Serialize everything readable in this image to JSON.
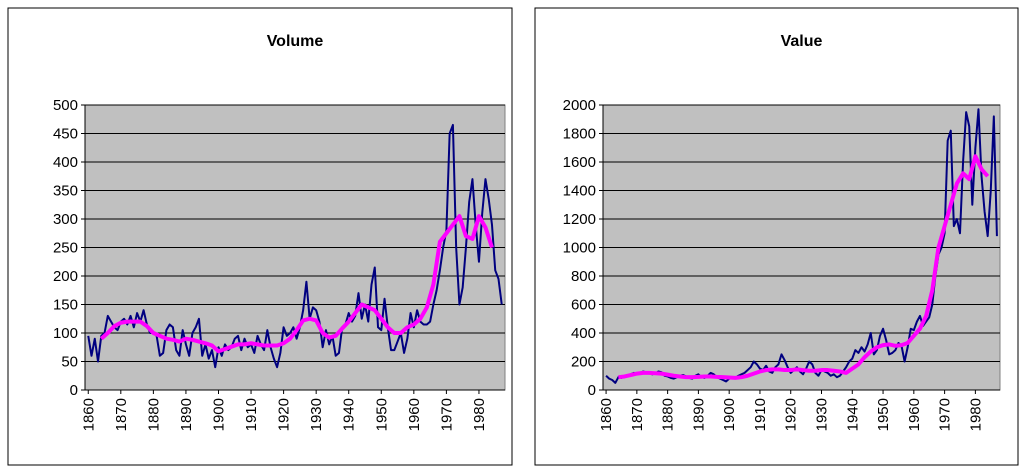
{
  "chart_data": [
    {
      "type": "line",
      "title": "Volume",
      "ylim": [
        0,
        500
      ],
      "yticks": [
        0,
        50,
        100,
        150,
        200,
        250,
        300,
        350,
        400,
        450,
        500
      ],
      "xlim": [
        1859,
        1988
      ],
      "xticks": [
        1860,
        1870,
        1880,
        1890,
        1900,
        1910,
        1920,
        1930,
        1940,
        1950,
        1960,
        1970,
        1980
      ],
      "grid": true,
      "x": [
        1860,
        1861,
        1862,
        1863,
        1864,
        1865,
        1866,
        1867,
        1868,
        1869,
        1870,
        1871,
        1872,
        1873,
        1874,
        1875,
        1876,
        1877,
        1878,
        1879,
        1880,
        1881,
        1882,
        1883,
        1884,
        1885,
        1886,
        1887,
        1888,
        1889,
        1890,
        1891,
        1892,
        1893,
        1894,
        1895,
        1896,
        1897,
        1898,
        1899,
        1900,
        1901,
        1902,
        1903,
        1904,
        1905,
        1906,
        1907,
        1908,
        1909,
        1910,
        1911,
        1912,
        1913,
        1914,
        1915,
        1916,
        1917,
        1918,
        1919,
        1920,
        1921,
        1922,
        1923,
        1924,
        1925,
        1926,
        1927,
        1928,
        1929,
        1930,
        1931,
        1932,
        1933,
        1934,
        1935,
        1936,
        1937,
        1938,
        1939,
        1940,
        1941,
        1942,
        1943,
        1944,
        1945,
        1946,
        1947,
        1948,
        1949,
        1950,
        1951,
        1952,
        1953,
        1954,
        1955,
        1956,
        1957,
        1958,
        1959,
        1960,
        1961,
        1962,
        1963,
        1964,
        1965,
        1966,
        1967,
        1968,
        1969,
        1970,
        1971,
        1972,
        1973,
        1974,
        1975,
        1976,
        1977,
        1978,
        1979,
        1980,
        1981,
        1982,
        1983,
        1984,
        1985,
        1986,
        1987
      ],
      "series": [
        {
          "color": "#000080",
          "values": [
            95,
            60,
            90,
            50,
            95,
            100,
            130,
            120,
            110,
            105,
            120,
            125,
            115,
            130,
            110,
            135,
            120,
            140,
            115,
            100,
            100,
            95,
            60,
            65,
            105,
            115,
            110,
            70,
            60,
            105,
            80,
            60,
            100,
            110,
            125,
            60,
            80,
            55,
            70,
            40,
            75,
            60,
            80,
            70,
            75,
            90,
            95,
            70,
            90,
            75,
            80,
            65,
            95,
            80,
            70,
            105,
            75,
            55,
            40,
            65,
            110,
            95,
            100,
            110,
            90,
            110,
            140,
            190,
            125,
            145,
            140,
            120,
            75,
            105,
            80,
            95,
            60,
            65,
            110,
            115,
            135,
            120,
            130,
            170,
            125,
            150,
            120,
            185,
            215,
            110,
            105,
            160,
            110,
            70,
            70,
            85,
            100,
            65,
            90,
            135,
            110,
            140,
            120,
            115,
            115,
            120,
            150,
            175,
            210,
            250,
            280,
            450,
            465,
            250,
            150,
            180,
            250,
            330,
            370,
            290,
            225,
            310,
            370,
            335,
            290,
            210,
            195,
            150
          ]
        },
        {
          "color": "#ff00ff",
          "x": [
            1864,
            1866,
            1868,
            1870,
            1872,
            1874,
            1876,
            1878,
            1880,
            1882,
            1884,
            1886,
            1888,
            1890,
            1892,
            1894,
            1896,
            1898,
            1900,
            1902,
            1904,
            1906,
            1908,
            1910,
            1912,
            1914,
            1916,
            1918,
            1920,
            1922,
            1924,
            1926,
            1928,
            1930,
            1932,
            1934,
            1936,
            1938,
            1940,
            1942,
            1944,
            1946,
            1948,
            1950,
            1952,
            1954,
            1956,
            1958,
            1960,
            1962,
            1964,
            1966,
            1968,
            1970,
            1972,
            1974,
            1976,
            1978,
            1980,
            1982,
            1984
          ],
          "values": [
            90,
            100,
            112,
            118,
            120,
            120,
            120,
            112,
            100,
            95,
            90,
            88,
            85,
            90,
            88,
            85,
            82,
            78,
            68,
            72,
            76,
            80,
            80,
            82,
            80,
            78,
            78,
            78,
            82,
            90,
            105,
            122,
            125,
            122,
            100,
            92,
            95,
            108,
            120,
            135,
            150,
            145,
            140,
            125,
            110,
            100,
            100,
            110,
            115,
            125,
            145,
            185,
            260,
            275,
            290,
            305,
            270,
            265,
            305,
            285,
            250
          ]
        }
      ]
    },
    {
      "type": "line",
      "title": "Value",
      "ylim": [
        0,
        2000
      ],
      "yticks": [
        0,
        200,
        400,
        600,
        800,
        1000,
        1200,
        1400,
        1600,
        1800,
        2000
      ],
      "xlim": [
        1859,
        1988
      ],
      "xticks": [
        1860,
        1870,
        1880,
        1890,
        1900,
        1910,
        1920,
        1930,
        1940,
        1950,
        1960,
        1970,
        1980
      ],
      "grid": true,
      "x": [
        1860,
        1861,
        1862,
        1863,
        1864,
        1865,
        1866,
        1867,
        1868,
        1869,
        1870,
        1871,
        1872,
        1873,
        1874,
        1875,
        1876,
        1877,
        1878,
        1879,
        1880,
        1881,
        1882,
        1883,
        1884,
        1885,
        1886,
        1887,
        1888,
        1889,
        1890,
        1891,
        1892,
        1893,
        1894,
        1895,
        1896,
        1897,
        1898,
        1899,
        1900,
        1901,
        1902,
        1903,
        1904,
        1905,
        1906,
        1907,
        1908,
        1909,
        1910,
        1911,
        1912,
        1913,
        1914,
        1915,
        1916,
        1917,
        1918,
        1919,
        1920,
        1921,
        1922,
        1923,
        1924,
        1925,
        1926,
        1927,
        1928,
        1929,
        1930,
        1931,
        1932,
        1933,
        1934,
        1935,
        1936,
        1937,
        1938,
        1939,
        1940,
        1941,
        1942,
        1943,
        1944,
        1945,
        1946,
        1947,
        1948,
        1949,
        1950,
        1951,
        1952,
        1953,
        1954,
        1955,
        1956,
        1957,
        1958,
        1959,
        1960,
        1961,
        1962,
        1963,
        1964,
        1965,
        1966,
        1967,
        1968,
        1969,
        1970,
        1971,
        1972,
        1973,
        1974,
        1975,
        1976,
        1977,
        1978,
        1979,
        1980,
        1981,
        1982,
        1983,
        1984,
        1985,
        1986,
        1987
      ],
      "series": [
        {
          "color": "#000080",
          "values": [
            100,
            80,
            70,
            50,
            90,
            85,
            95,
            100,
            110,
            120,
            115,
            120,
            130,
            125,
            120,
            110,
            115,
            130,
            125,
            100,
            95,
            85,
            80,
            90,
            100,
            105,
            95,
            85,
            80,
            100,
            110,
            90,
            85,
            100,
            120,
            110,
            90,
            80,
            70,
            60,
            80,
            90,
            85,
            100,
            110,
            120,
            140,
            160,
            200,
            180,
            150,
            140,
            170,
            130,
            120,
            160,
            180,
            250,
            210,
            160,
            120,
            140,
            160,
            130,
            110,
            150,
            200,
            180,
            120,
            100,
            140,
            130,
            120,
            100,
            110,
            90,
            100,
            130,
            160,
            200,
            220,
            280,
            260,
            300,
            270,
            320,
            400,
            250,
            280,
            380,
            430,
            350,
            250,
            260,
            280,
            330,
            310,
            200,
            300,
            430,
            420,
            480,
            520,
            450,
            480,
            510,
            600,
            800,
            950,
            1000,
            1100,
            1750,
            1820,
            1150,
            1200,
            1100,
            1600,
            1950,
            1850,
            1300,
            1700,
            1970,
            1500,
            1250,
            1080,
            1400,
            1920,
            1080
          ]
        },
        {
          "color": "#ff00ff",
          "x": [
            1864,
            1866,
            1868,
            1870,
            1872,
            1874,
            1876,
            1878,
            1880,
            1882,
            1884,
            1886,
            1888,
            1890,
            1892,
            1894,
            1896,
            1898,
            1900,
            1902,
            1904,
            1906,
            1908,
            1910,
            1912,
            1914,
            1916,
            1918,
            1920,
            1922,
            1924,
            1926,
            1928,
            1930,
            1932,
            1934,
            1936,
            1938,
            1940,
            1942,
            1944,
            1946,
            1948,
            1950,
            1952,
            1954,
            1956,
            1958,
            1960,
            1962,
            1964,
            1966,
            1968,
            1970,
            1972,
            1974,
            1976,
            1978,
            1980,
            1982,
            1984
          ],
          "values": [
            90,
            95,
            105,
            115,
            120,
            120,
            118,
            115,
            108,
            100,
            95,
            90,
            90,
            92,
            95,
            95,
            92,
            90,
            88,
            85,
            90,
            100,
            115,
            130,
            140,
            145,
            145,
            140,
            140,
            145,
            140,
            135,
            135,
            140,
            140,
            135,
            130,
            120,
            150,
            180,
            230,
            270,
            300,
            315,
            320,
            310,
            315,
            330,
            380,
            430,
            520,
            700,
            1000,
            1150,
            1300,
            1450,
            1520,
            1480,
            1640,
            1550,
            1500
          ]
        }
      ]
    }
  ]
}
